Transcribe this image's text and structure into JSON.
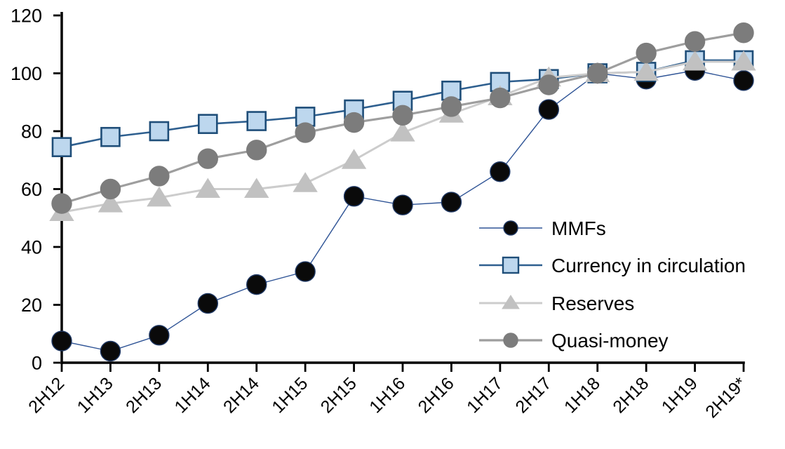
{
  "chart_data": {
    "type": "line",
    "title": "",
    "xlabel": "",
    "ylabel": "",
    "grid": false,
    "background_color": "#FFFFFF",
    "axis_color": "#000000",
    "ylim": [
      0,
      120
    ],
    "yticks": [
      0,
      20,
      40,
      60,
      80,
      100,
      120
    ],
    "legend_position": "inside-right",
    "categories": [
      "2H12",
      "1H13",
      "2H13",
      "1H14",
      "2H14",
      "1H15",
      "2H15",
      "1H16",
      "2H16",
      "1H17",
      "2H17",
      "1H18",
      "2H18",
      "1H19",
      "2H19*"
    ],
    "series": [
      {
        "name": "MMFs",
        "marker": "circle",
        "marker_fill": "#0A0A0A",
        "marker_edge": "#1F3864",
        "line_color": "#2F5496",
        "line_width": 1.4,
        "marker_size": 14,
        "values": [
          7.5,
          4,
          9.5,
          20.5,
          27,
          31.5,
          57.5,
          54.5,
          55.5,
          66,
          87.5,
          100,
          98,
          101,
          97.5
        ]
      },
      {
        "name": "Currency in circulation",
        "marker": "square",
        "marker_fill": "#BDD7EE",
        "marker_edge": "#1F4E79",
        "line_color": "#2E5F8F",
        "line_width": 2.6,
        "marker_size": 14,
        "values": [
          74.5,
          78,
          80,
          82.5,
          83.5,
          85,
          87.5,
          90.5,
          94,
          97,
          98,
          100,
          100.5,
          104.5,
          104.5
        ]
      },
      {
        "name": "Reserves",
        "marker": "triangle",
        "marker_fill": "#C1C1C1",
        "marker_edge": "#C1C1C1",
        "line_color": "#CCCCCC",
        "line_width": 3,
        "marker_size": 15,
        "values": [
          52,
          55,
          57,
          60,
          60,
          62,
          70,
          79.5,
          86,
          92,
          98.5,
          100,
          100.5,
          104,
          104
        ]
      },
      {
        "name": "Quasi-money",
        "marker": "circle",
        "marker_fill": "#7C7C7C",
        "marker_edge": "#7C7C7C",
        "line_color": "#9E9E9E",
        "line_width": 3.2,
        "marker_size": 14,
        "values": [
          55,
          60,
          64.5,
          70.5,
          73.5,
          79.5,
          83,
          85.5,
          88.5,
          91.5,
          96,
          100,
          107,
          111,
          114
        ]
      }
    ]
  }
}
